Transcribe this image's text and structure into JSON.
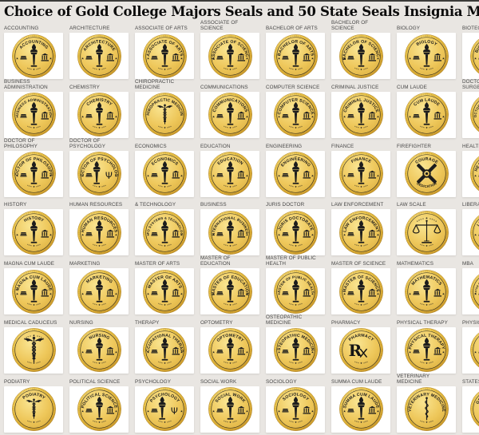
{
  "page": {
    "title": "Choice of Gold College Majors Seals and 50 State Seals Insignia Medallic Logos"
  },
  "colors": {
    "page_background": "#e9e6e2",
    "top_strip": "#3b3b39",
    "tile_background": "#ffffff",
    "label_text": "#474747",
    "title_text": "#0c0c0c",
    "seal_gold_light": "#fdf0b0",
    "seal_gold": "#eec94f",
    "seal_gold_dark": "#c89a2b",
    "seal_line_art": "#1d1d1d"
  },
  "seals": [
    {
      "label": "ACCOUNTING",
      "arc": "ACCOUNTING",
      "icon": "torch"
    },
    {
      "label": "ARCHITECTURE",
      "arc": "ARCHITECTURE",
      "icon": "torch"
    },
    {
      "label": "ASSOCIATE OF ARTS",
      "arc": "ASSOCIATE OF ARTS",
      "icon": "torch"
    },
    {
      "label": "ASSOCIATE OF SCIENCE",
      "arc": "ASSOCIATE OF SCIENCE",
      "icon": "torch"
    },
    {
      "label": "BACHELOR OF ARTS",
      "arc": "BACHELOR OF ARTS",
      "icon": "torch"
    },
    {
      "label": "BACHELOR OF SCIENCE",
      "arc": "BACHELOR OF SCIENCE",
      "icon": "torch"
    },
    {
      "label": "BIOLOGY",
      "arc": "BIOLOGY",
      "icon": "torch"
    },
    {
      "label": "BIOTECHNOLOGY",
      "arc": "BIOTECHNOLOGY",
      "icon": "torch"
    },
    {
      "label": "BUSINESS ADMINISTRATION",
      "arc": "BUSINESS ADMINISTRATION",
      "icon": "torch"
    },
    {
      "label": "CHEMISTRY",
      "arc": "CHEMISTRY",
      "icon": "torch"
    },
    {
      "label": "CHIROPRACTIC MEDICINE",
      "arc": "CHIROPRACTIC MEDICINE",
      "icon": "caduceus"
    },
    {
      "label": "COMMUNICATIONS",
      "arc": "COMMUNICATIONS",
      "icon": "torch"
    },
    {
      "label": "COMPUTER SCIENCE",
      "arc": "COMPUTER SCIENCE",
      "icon": "torch"
    },
    {
      "label": "CRIMINAL JUSTICE",
      "arc": "CRIMINAL JUSTICE",
      "icon": "torch"
    },
    {
      "label": "CUM LAUDE",
      "arc": "CUM LAUDE",
      "icon": "torch"
    },
    {
      "label": "DOCTOR OF DENTAL SURGERY",
      "arc": "DOCTOR OF DENTAL SURGERY",
      "icon": "rosette"
    },
    {
      "label": "DOCTOR OF PHILOSOPHY",
      "arc": "DOCTOR OF PHILOSOPHY",
      "icon": "torch"
    },
    {
      "label": "DOCTOR OF PSYCHOLOGY",
      "arc": "DOCTOR OF PSYCHOLOGY",
      "icon": "psi"
    },
    {
      "label": "ECONOMICS",
      "arc": "ECONOMICS",
      "icon": "torch"
    },
    {
      "label": "EDUCATION",
      "arc": "EDUCATION",
      "icon": "torch"
    },
    {
      "label": "ENGINEERING",
      "arc": "ENGINEERING",
      "icon": "torch"
    },
    {
      "label": "FINANCE",
      "arc": "FINANCE",
      "icon": "torch"
    },
    {
      "label": "FIREFIGHTER",
      "arc": "COURAGE",
      "arc_bottom": "DEDICATION",
      "icon": "cross"
    },
    {
      "label": "HEALTH SCIENCES",
      "arc": "HEALTH SCIENCES",
      "icon": "torch"
    },
    {
      "label": "HISTORY",
      "arc": "HISTORY",
      "icon": "torch"
    },
    {
      "label": "HUMAN RESOURCES",
      "arc": "HUMAN RESOURCES",
      "icon": "torch"
    },
    {
      "label": "& TECHNOLOGY",
      "arc": "INFO SYSTEMS & TECHNOLOGY",
      "icon": "torch"
    },
    {
      "label": "BUSINESS",
      "arc": "INTERNATIONAL BUSINESS",
      "icon": "torch"
    },
    {
      "label": "JURIS DOCTOR",
      "arc": "JURIS DOCTORATE",
      "icon": "torch"
    },
    {
      "label": "LAW ENFORCEMENT",
      "arc": "LAW ENFORCEMENT",
      "icon": "torch"
    },
    {
      "label": "LAW SCALE",
      "arc": "",
      "icon": "scale"
    },
    {
      "label": "LIBERAL ARTS",
      "arc": "LIBERAL ARTS",
      "icon": "torch"
    },
    {
      "label": "MAGNA CUM LAUDE",
      "arc": "MAGNA CUM LAUDE",
      "icon": "torch"
    },
    {
      "label": "MARKETING",
      "arc": "MARKETING",
      "icon": "torch"
    },
    {
      "label": "MASTER OF ARTS",
      "arc": "MASTER OF ARTS",
      "icon": "torch"
    },
    {
      "label": "MASTER OF EDUCATION",
      "arc": "MASTER OF EDUCATION",
      "icon": "torch"
    },
    {
      "label": "MASTER OF PUBLIC HEALTH",
      "arc": "MASTER OF PUBLIC HEALTH",
      "icon": "torch"
    },
    {
      "label": "MASTER OF SCIENCE",
      "arc": "MASTER OF SCIENCE",
      "icon": "torch"
    },
    {
      "label": "MATHEMATICS",
      "arc": "MATHEMATICS",
      "icon": "torch"
    },
    {
      "label": "MBA",
      "arc": "MASTER OF BUSINESS ADMINISTRATION",
      "icon": "torch"
    },
    {
      "label": "MEDICAL CADUCEUS",
      "arc": "",
      "icon": "caduceus-big"
    },
    {
      "label": "NURSING",
      "arc": "NURSING",
      "icon": "torch"
    },
    {
      "label": "THERAPY",
      "arc": "OCCUPATIONAL THERAPY",
      "icon": "torch"
    },
    {
      "label": "OPTOMETRY",
      "arc": "OPTOMETRY",
      "icon": "torch"
    },
    {
      "label": "OSTEOPATHIC MEDICINE",
      "arc": "OSTEOPATHIC MEDICINE",
      "icon": "torch"
    },
    {
      "label": "PHARMACY",
      "arc": "PHARMACY",
      "icon": "rx"
    },
    {
      "label": "PHYSICAL THERAPY",
      "arc": "PHYSICAL THERAPY",
      "icon": "torch"
    },
    {
      "label": "PHYSICS",
      "arc": "PHYSICS",
      "icon": "torch"
    },
    {
      "label": "PODIATRY",
      "arc": "PODIATRY",
      "icon": "caduceus"
    },
    {
      "label": "POLITICAL SCIENCE",
      "arc": "POLITICAL SCIENCE",
      "icon": "torch"
    },
    {
      "label": "PSYCHOLOGY",
      "arc": "PSYCHOLOGY",
      "icon": "psi"
    },
    {
      "label": "SOCIAL WORK",
      "arc": "SOCIAL WORK",
      "icon": "torch"
    },
    {
      "label": "SOCIOLOGY",
      "arc": "SOCIOLOGY",
      "icon": "torch"
    },
    {
      "label": "SUMMA CUM LAUDE",
      "arc": "SUMMA CUM LAUDE",
      "icon": "torch"
    },
    {
      "label": "VETERINARY MEDICINE",
      "arc": "VETERINARY MEDICINE",
      "icon": "asclepius"
    },
    {
      "label": "STATES etc...",
      "arc": "GREAT SEAL OF",
      "arc_bottom": "THE STATE",
      "icon": "crest"
    }
  ]
}
